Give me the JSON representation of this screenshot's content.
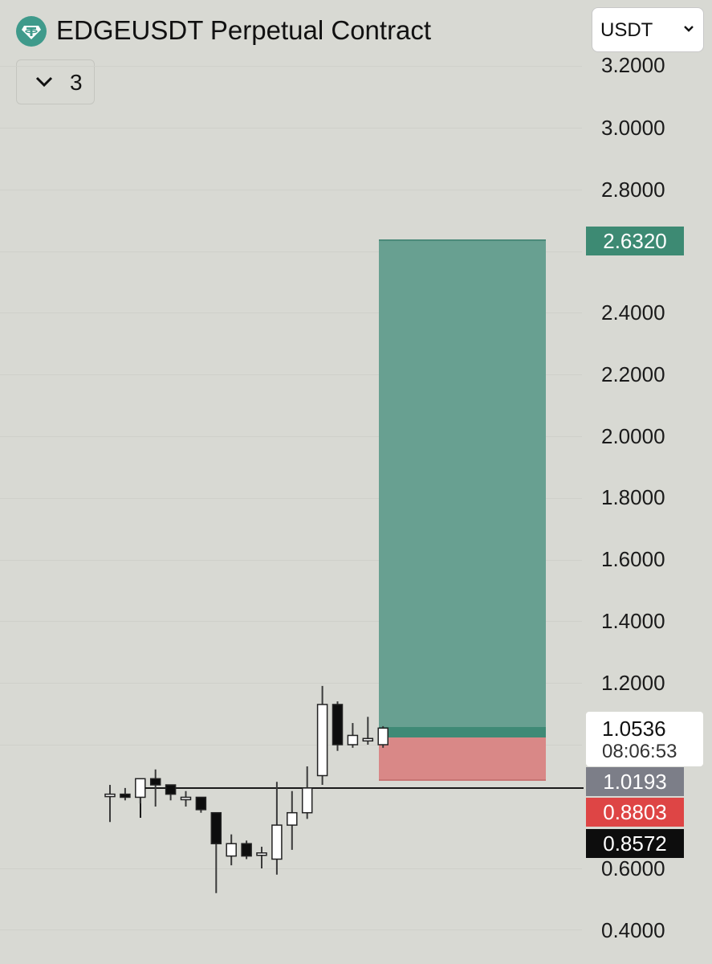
{
  "header": {
    "title": "EDGEUSDT Perpetual Contract",
    "logo_icon": "tether-icon",
    "currency": {
      "selected": "USDT",
      "chevron_icon": "chevron-down-icon"
    },
    "indicators": {
      "chevron_icon": "chevron-down-icon",
      "count": "3"
    }
  },
  "price_axis": {
    "labels": [
      "3.2000",
      "3.0000",
      "2.8000",
      "2.4000",
      "2.2000",
      "2.0000",
      "1.8000",
      "1.6000",
      "1.4000",
      "1.2000",
      "0.6000",
      "0.4000"
    ]
  },
  "price_tags": {
    "target": "2.6320",
    "current_price": "1.0536",
    "countdown": "08:06:53",
    "entry": "1.0193",
    "stop": "0.8803",
    "low": "0.8572"
  },
  "colors": {
    "background": "#d8d9d3",
    "target_zone": "#68a091",
    "stop_zone": "#d98887",
    "target_tag": "#3d8a73",
    "entry_tag": "#7c7e88",
    "stop_tag": "#de4545",
    "low_tag": "#0d0d0d",
    "bull_candle": "#ffffff",
    "bear_candle": "#0d0d0d"
  },
  "chart_data": {
    "type": "candlestick",
    "ylim": [
      0.33,
      3.25
    ],
    "candles": [
      {
        "open": 0.84,
        "high": 0.87,
        "low": 0.75,
        "close": 0.84
      },
      {
        "open": 0.84,
        "high": 0.86,
        "low": 0.82,
        "close": 0.83
      },
      {
        "open": 0.83,
        "high": 0.89,
        "low": 0.81,
        "close": 0.89
      },
      {
        "open": 0.89,
        "high": 0.92,
        "low": 0.8,
        "close": 0.87
      },
      {
        "open": 0.87,
        "high": 0.87,
        "low": 0.82,
        "close": 0.84
      },
      {
        "open": 0.83,
        "high": 0.85,
        "low": 0.8,
        "close": 0.83
      },
      {
        "open": 0.83,
        "high": 0.83,
        "low": 0.78,
        "close": 0.79
      },
      {
        "open": 0.78,
        "high": 0.78,
        "low": 0.52,
        "close": 0.68
      },
      {
        "open": 0.64,
        "high": 0.71,
        "low": 0.61,
        "close": 0.68
      },
      {
        "open": 0.68,
        "high": 0.69,
        "low": 0.63,
        "close": 0.64
      },
      {
        "open": 0.65,
        "high": 0.67,
        "low": 0.6,
        "close": 0.65
      },
      {
        "open": 0.63,
        "high": 0.88,
        "low": 0.58,
        "close": 0.74
      },
      {
        "open": 0.74,
        "high": 0.85,
        "low": 0.66,
        "close": 0.78
      },
      {
        "open": 0.78,
        "high": 0.93,
        "low": 0.76,
        "close": 0.86
      },
      {
        "open": 0.9,
        "high": 1.19,
        "low": 0.87,
        "close": 1.13
      },
      {
        "open": 1.13,
        "high": 1.14,
        "low": 0.98,
        "close": 1.0
      },
      {
        "open": 1.0,
        "high": 1.07,
        "low": 0.99,
        "close": 1.03
      },
      {
        "open": 1.02,
        "high": 1.09,
        "low": 1.0,
        "close": 1.02
      },
      {
        "open": 1.0,
        "high": 1.06,
        "low": 0.99,
        "close": 1.0536
      }
    ]
  }
}
